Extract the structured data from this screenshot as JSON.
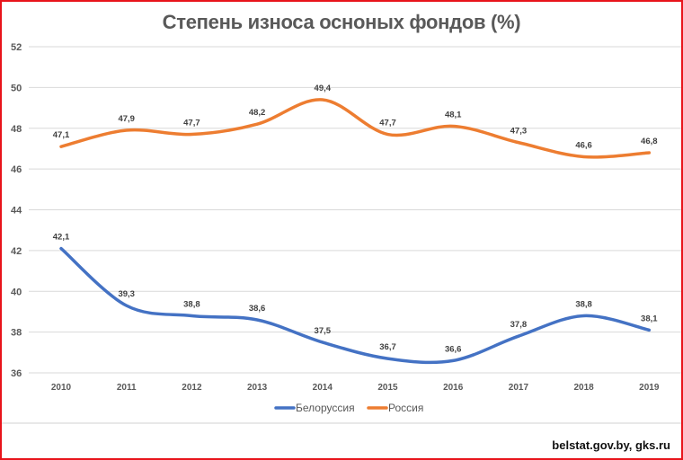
{
  "chart_data": {
    "type": "line",
    "title": "Степень износа осноных фондов (%)",
    "categories": [
      "2010",
      "2011",
      "2012",
      "2013",
      "2014",
      "2015",
      "2016",
      "2017",
      "2018",
      "2019"
    ],
    "series": [
      {
        "name": "Белоруссия",
        "color": "#4472c4",
        "values": [
          42.1,
          39.3,
          38.8,
          38.6,
          37.5,
          36.7,
          36.6,
          37.8,
          38.8,
          38.1
        ],
        "labels": [
          "42,1",
          "39,3",
          "38,8",
          "38,6",
          "37,5",
          "36,7",
          "36,6",
          "37,8",
          "38,8",
          "38,1"
        ]
      },
      {
        "name": "Россия",
        "color": "#ed7d31",
        "values": [
          47.1,
          47.9,
          47.7,
          48.2,
          49.4,
          47.7,
          48.1,
          47.3,
          46.6,
          46.8
        ],
        "labels": [
          "47,1",
          "47,9",
          "47,7",
          "48,2",
          "49,4",
          "47,7",
          "48,1",
          "47,3",
          "46,6",
          "46,8"
        ]
      }
    ],
    "yticks": [
      "36",
      "38",
      "40",
      "42",
      "44",
      "46",
      "48",
      "50",
      "52"
    ],
    "ylim": [
      36,
      52
    ],
    "grid": true,
    "smooth": true,
    "legend": "bottom-center",
    "xlabel": "",
    "ylabel": ""
  },
  "source": "belstat.gov.by,  gks.ru"
}
